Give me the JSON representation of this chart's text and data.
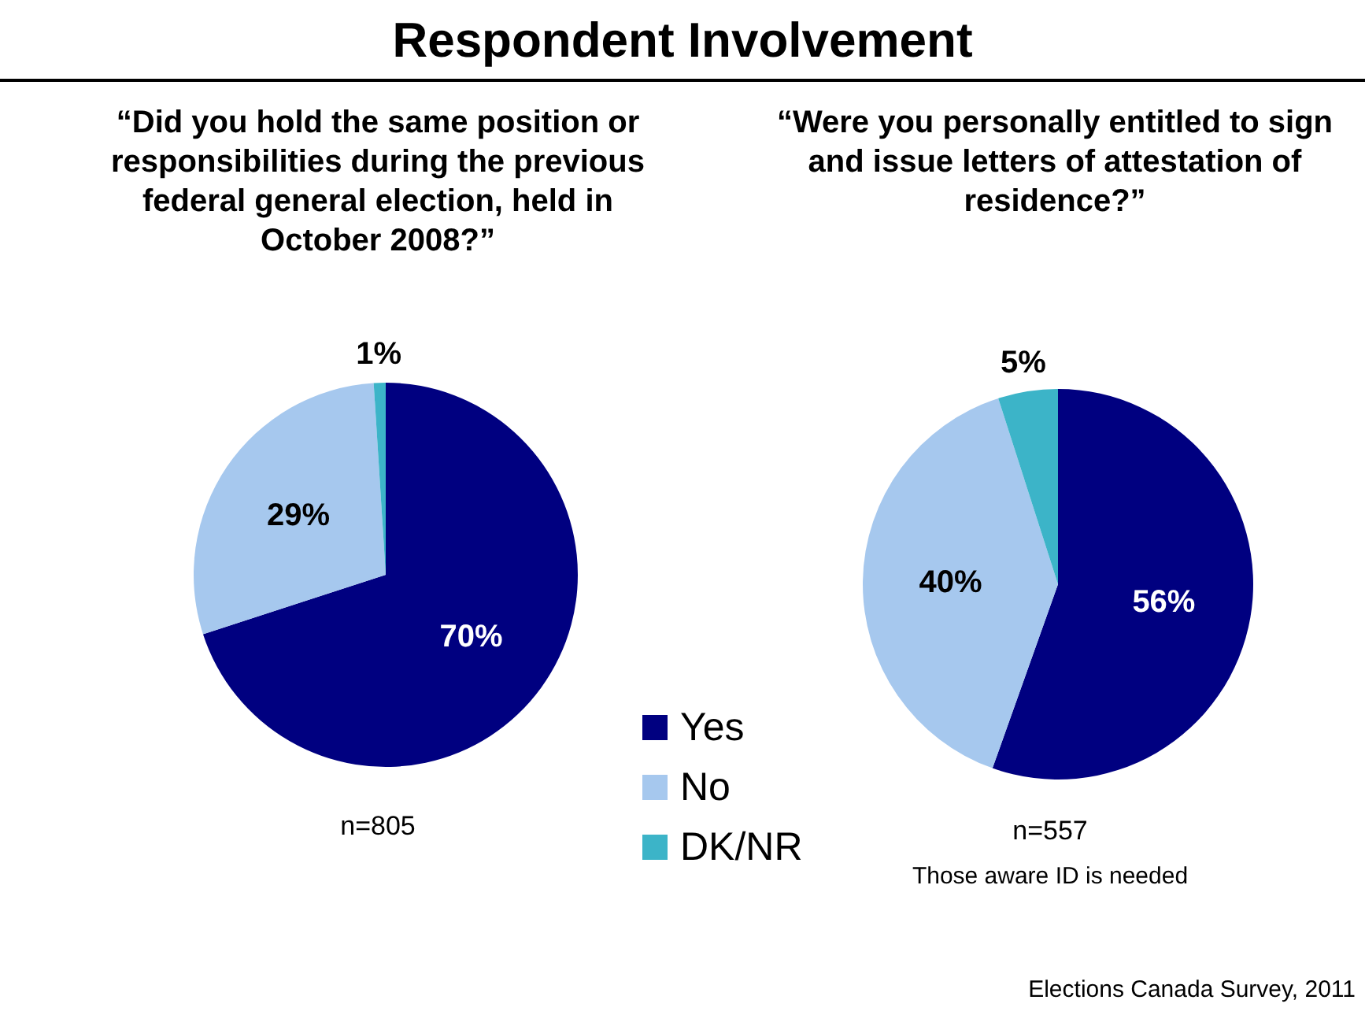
{
  "chart_data": [
    {
      "type": "pie",
      "title": "Respondent Involvement",
      "subtitle": "“Did you hold the same position or responsibilities during the previous federal general election, held in October 2008?”",
      "categories": [
        "Yes",
        "No",
        "DK/NR"
      ],
      "values": [
        70,
        29,
        1
      ],
      "value_labels": [
        "70%",
        "29%",
        "1%"
      ],
      "colors": [
        "#000080",
        "#a6c8ee",
        "#3cb4c8"
      ],
      "legend": "bottom right",
      "annotations": [
        "n=805"
      ]
    },
    {
      "type": "pie",
      "subtitle": "“Were you personally entitled to sign and issue letters of attestation of residence?”",
      "categories": [
        null,
        null,
        null
      ],
      "values": [
        56,
        40,
        5
      ],
      "value_labels": [
        "56%",
        "40%",
        "5%"
      ],
      "colors": [
        "#000080",
        "#a6c8ee",
        "#3cb4c8"
      ],
      "annotations": [
        "n=557",
        "Those aware ID is needed",
        "Elections Canada Survey, 2011"
      ]
    }
  ]
}
